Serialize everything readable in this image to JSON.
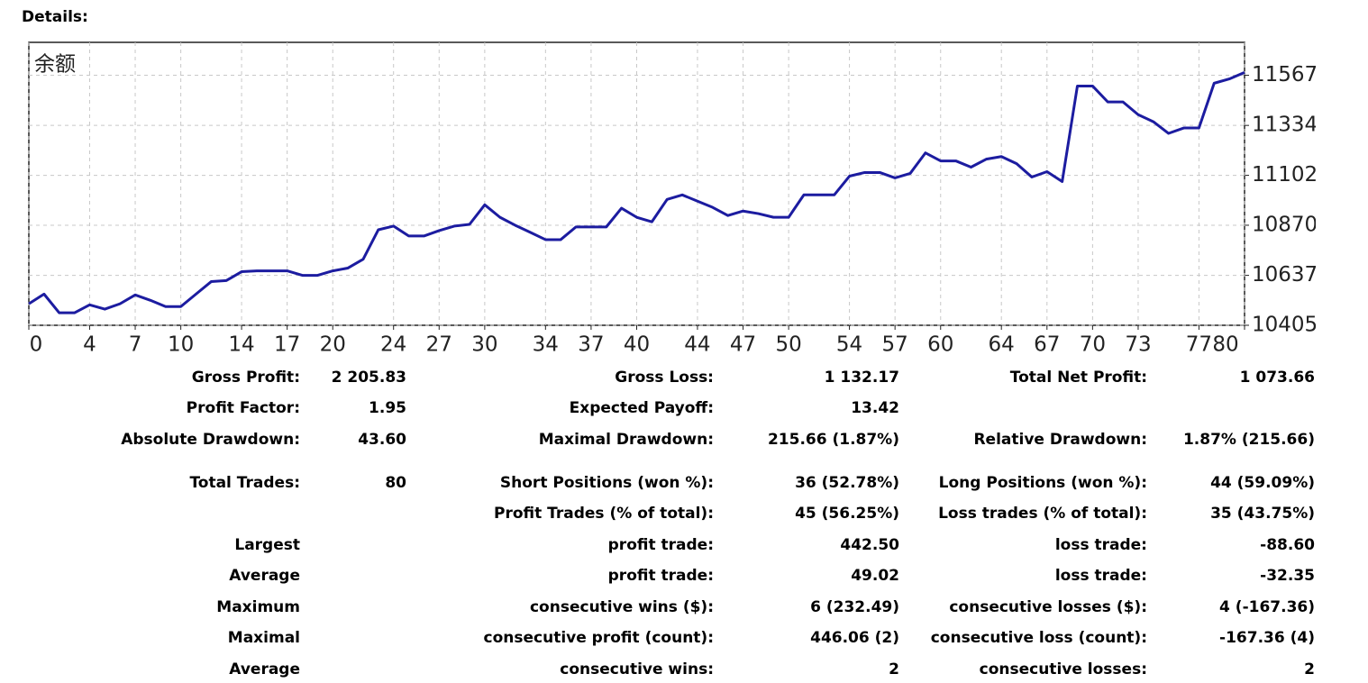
{
  "header": {
    "title": "Details:"
  },
  "chart_data": {
    "type": "line",
    "x": [
      0,
      1,
      2,
      3,
      4,
      5,
      6,
      7,
      8,
      9,
      10,
      11,
      12,
      13,
      14,
      15,
      16,
      17,
      18,
      19,
      20,
      21,
      22,
      23,
      24,
      25,
      26,
      27,
      28,
      29,
      30,
      31,
      32,
      33,
      34,
      35,
      36,
      37,
      38,
      39,
      40,
      41,
      42,
      43,
      44,
      45,
      46,
      47,
      48,
      49,
      50,
      51,
      52,
      53,
      54,
      55,
      56,
      57,
      58,
      59,
      60,
      61,
      62,
      63,
      64,
      65,
      66,
      67,
      68,
      69,
      70,
      71,
      72,
      73,
      74,
      75,
      76,
      77,
      78,
      79,
      80
    ],
    "series": [
      {
        "name": "余额",
        "color": "#1c1ca0",
        "values": [
          10505,
          10550,
          10463,
          10463,
          10500,
          10480,
          10505,
          10546,
          10521,
          10492,
          10492,
          10550,
          10608,
          10613,
          10654,
          10658,
          10658,
          10658,
          10637,
          10637,
          10658,
          10671,
          10712,
          10849,
          10866,
          10820,
          10820,
          10845,
          10866,
          10874,
          10965,
          10907,
          10870,
          10837,
          10803,
          10803,
          10862,
          10862,
          10862,
          10949,
          10907,
          10886,
          10990,
          11011,
          10982,
          10953,
          10915,
          10936,
          10924,
          10907,
          10907,
          11011,
          11011,
          11011,
          11098,
          11115,
          11115,
          11090,
          11111,
          11206,
          11169,
          11169,
          11140,
          11177,
          11189,
          11156,
          11094,
          11119,
          11073,
          11517,
          11517,
          11443,
          11443,
          11384,
          11351,
          11297,
          11322,
          11322,
          11530,
          11550,
          11580
        ]
      }
    ],
    "xlim": [
      0,
      80
    ],
    "xticks": [
      0,
      4,
      7,
      10,
      14,
      17,
      20,
      24,
      27,
      30,
      34,
      37,
      40,
      44,
      47,
      50,
      54,
      57,
      60,
      64,
      67,
      70,
      73,
      77,
      80
    ],
    "ylim": [
      10405,
      11720
    ],
    "yticks": [
      10405,
      10637,
      10870,
      11102,
      11334,
      11567
    ],
    "grid": true
  },
  "table": {
    "rows": [
      [
        "Gross Profit:",
        "2 205.83",
        "Gross Loss:",
        "1 132.17",
        "Total Net Profit:",
        "1 073.66"
      ],
      [
        "Profit Factor:",
        "1.95",
        "Expected Payoff:",
        "13.42",
        null,
        null
      ],
      [
        "Absolute Drawdown:",
        "43.60",
        "Maximal Drawdown:",
        "215.66 (1.87%)",
        "Relative Drawdown:",
        "1.87% (215.66)"
      ],
      [
        "Total Trades:",
        "80",
        "Short Positions (won %):",
        "36 (52.78%)",
        "Long Positions (won %):",
        "44 (59.09%)"
      ],
      [
        null,
        null,
        "Profit Trades (% of total):",
        "45 (56.25%)",
        "Loss trades (% of total):",
        "35 (43.75%)"
      ],
      [
        "Largest",
        null,
        "profit trade:",
        "442.50",
        "loss trade:",
        "-88.60"
      ],
      [
        "Average",
        null,
        "profit trade:",
        "49.02",
        "loss trade:",
        "-32.35"
      ],
      [
        "Maximum",
        null,
        "consecutive wins ($):",
        "6 (232.49)",
        "consecutive losses ($):",
        "4 (-167.36)"
      ],
      [
        "Maximal",
        null,
        "consecutive profit (count):",
        "446.06 (2)",
        "consecutive loss (count):",
        "-167.36 (4)"
      ],
      [
        "Average",
        null,
        "consecutive wins:",
        "2",
        "consecutive losses:",
        "2"
      ]
    ]
  }
}
